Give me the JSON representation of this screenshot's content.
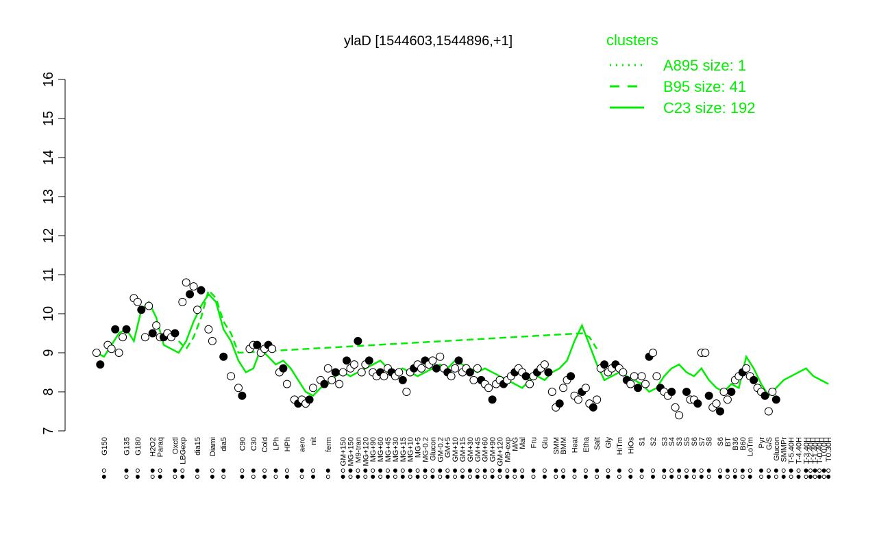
{
  "chart_data": {
    "type": "line",
    "title": "ylaD [1544603,1544896,+1]",
    "xlabel": "",
    "ylabel": "",
    "ylim": [
      7,
      16
    ],
    "yticks": [
      7,
      8,
      9,
      10,
      11,
      12,
      13,
      14,
      15,
      16
    ],
    "xlim": [
      0,
      100
    ],
    "x_tick_labels": [
      {
        "x": 2,
        "label": "G150"
      },
      {
        "x": 5,
        "label": "G135"
      },
      {
        "x": 6.5,
        "label": "G180"
      },
      {
        "x": 8.5,
        "label": "H2O2"
      },
      {
        "x": 9.5,
        "label": "Paraq"
      },
      {
        "x": 11.5,
        "label": "Oxctl"
      },
      {
        "x": 12.5,
        "label": "LBGexp"
      },
      {
        "x": 14.5,
        "label": "dia15"
      },
      {
        "x": 16.5,
        "label": "Diami"
      },
      {
        "x": 18,
        "label": "dia5"
      },
      {
        "x": 20.5,
        "label": "C90"
      },
      {
        "x": 22,
        "label": "C30"
      },
      {
        "x": 23.5,
        "label": "Cold"
      },
      {
        "x": 25,
        "label": "LPh"
      },
      {
        "x": 26.5,
        "label": "HPh"
      },
      {
        "x": 28.5,
        "label": "aero"
      },
      {
        "x": 30,
        "label": "nit"
      },
      {
        "x": 32,
        "label": "ferm"
      },
      {
        "x": 34,
        "label": "GM+150"
      },
      {
        "x": 35,
        "label": "MG+150"
      },
      {
        "x": 36,
        "label": "M9-tran"
      },
      {
        "x": 37,
        "label": "MG+120"
      },
      {
        "x": 38,
        "label": "MG+90"
      },
      {
        "x": 39,
        "label": "MG+60"
      },
      {
        "x": 40,
        "label": "MG+45"
      },
      {
        "x": 41,
        "label": "MG+30"
      },
      {
        "x": 42,
        "label": "MG+15"
      },
      {
        "x": 43,
        "label": "MG+10"
      },
      {
        "x": 44,
        "label": "MG+5"
      },
      {
        "x": 45,
        "label": "MG-0.2"
      },
      {
        "x": 46,
        "label": "Glucon"
      },
      {
        "x": 47,
        "label": "GM-0.2"
      },
      {
        "x": 48,
        "label": "GM+5"
      },
      {
        "x": 49,
        "label": "GM+10"
      },
      {
        "x": 50,
        "label": "GM+15"
      },
      {
        "x": 51,
        "label": "GM+30"
      },
      {
        "x": 52,
        "label": "GM+45"
      },
      {
        "x": 53,
        "label": "GM+60"
      },
      {
        "x": 54,
        "label": "GM+90"
      },
      {
        "x": 55,
        "label": "GM+120"
      },
      {
        "x": 56,
        "label": "M9-exp"
      },
      {
        "x": 57,
        "label": "M/G"
      },
      {
        "x": 58,
        "label": "Mal"
      },
      {
        "x": 59.5,
        "label": "Fru"
      },
      {
        "x": 61,
        "label": "Glu"
      },
      {
        "x": 62.5,
        "label": "SMM"
      },
      {
        "x": 63.5,
        "label": "BMM"
      },
      {
        "x": 65,
        "label": "Heat"
      },
      {
        "x": 66.5,
        "label": "Etha"
      },
      {
        "x": 68,
        "label": "Salt"
      },
      {
        "x": 69.5,
        "label": "Gly"
      },
      {
        "x": 71,
        "label": "HiTm"
      },
      {
        "x": 72.5,
        "label": "HiOs"
      },
      {
        "x": 74,
        "label": "S1"
      },
      {
        "x": 75.5,
        "label": "S2"
      },
      {
        "x": 77,
        "label": "S3"
      },
      {
        "x": 78,
        "label": "S4"
      },
      {
        "x": 79,
        "label": "S3"
      },
      {
        "x": 80,
        "label": "S5"
      },
      {
        "x": 81,
        "label": "S6"
      },
      {
        "x": 82,
        "label": "S7"
      },
      {
        "x": 83,
        "label": "S8"
      },
      {
        "x": 84.5,
        "label": "S6"
      },
      {
        "x": 85.5,
        "label": "BT"
      },
      {
        "x": 86.5,
        "label": "B36"
      },
      {
        "x": 87.5,
        "label": "B60"
      },
      {
        "x": 88.5,
        "label": "LoTm"
      },
      {
        "x": 90,
        "label": "Pyr"
      },
      {
        "x": 91,
        "label": "G/S"
      },
      {
        "x": 92,
        "label": "Glucon"
      },
      {
        "x": 93,
        "label": "SMMPr"
      },
      {
        "x": 94,
        "label": "T-5.40H"
      },
      {
        "x": 95,
        "label": "T-4.40H"
      },
      {
        "x": 96,
        "label": "T-3.40H"
      },
      {
        "x": 96.6,
        "label": "T-2.40H"
      },
      {
        "x": 97.2,
        "label": "T-1.40H"
      },
      {
        "x": 97.8,
        "label": "T-0.40H"
      },
      {
        "x": 98.4,
        "label": "T0.0H"
      },
      {
        "x": 99,
        "label": "T0.30H"
      }
    ],
    "series": [
      {
        "name": "A895 size: 1",
        "style": "dotted",
        "color": "#00ee00",
        "points": []
      },
      {
        "name": "B95 size: 41",
        "style": "dashed",
        "color": "#00ee00",
        "points": [
          [
            12,
            9.3
          ],
          [
            13,
            9.1
          ],
          [
            14,
            9.4
          ],
          [
            15,
            9.9
          ],
          [
            16,
            10.6
          ],
          [
            17,
            10.4
          ],
          [
            18,
            9.8
          ],
          [
            19,
            9.5
          ],
          [
            20,
            9.0
          ],
          [
            66,
            9.5
          ],
          [
            67,
            9.4
          ],
          [
            68,
            9.1
          ]
        ]
      },
      {
        "name": "C23 size: 192",
        "style": "solid",
        "color": "#00ee00",
        "points": [
          [
            1,
            9.0
          ],
          [
            2,
            8.9
          ],
          [
            3,
            9.2
          ],
          [
            4,
            9.5
          ],
          [
            5,
            9.6
          ],
          [
            6,
            9.3
          ],
          [
            7,
            10.1
          ],
          [
            8,
            10.3
          ],
          [
            9,
            9.9
          ],
          [
            10,
            9.2
          ],
          [
            11,
            9.1
          ],
          [
            12,
            9.0
          ],
          [
            13,
            9.3
          ],
          [
            14,
            9.8
          ],
          [
            15,
            10.2
          ],
          [
            16,
            10.5
          ],
          [
            17,
            10.3
          ],
          [
            18,
            9.6
          ],
          [
            19,
            9.3
          ],
          [
            20,
            8.8
          ],
          [
            21,
            8.5
          ],
          [
            22,
            8.6
          ],
          [
            23,
            9.1
          ],
          [
            24,
            8.9
          ],
          [
            25,
            8.7
          ],
          [
            26,
            8.8
          ],
          [
            27,
            8.6
          ],
          [
            28,
            8.3
          ],
          [
            29,
            8.0
          ],
          [
            30,
            7.9
          ],
          [
            31,
            8.1
          ],
          [
            32,
            8.2
          ],
          [
            33,
            8.4
          ],
          [
            34,
            8.5
          ],
          [
            35,
            8.4
          ],
          [
            36,
            8.5
          ],
          [
            37,
            8.6
          ],
          [
            38,
            8.7
          ],
          [
            39,
            8.8
          ],
          [
            40,
            8.6
          ],
          [
            41,
            8.5
          ],
          [
            42,
            8.6
          ],
          [
            43,
            8.5
          ],
          [
            44,
            8.4
          ],
          [
            45,
            8.5
          ],
          [
            46,
            8.6
          ],
          [
            47,
            8.7
          ],
          [
            48,
            8.6
          ],
          [
            49,
            8.8
          ],
          [
            50,
            8.7
          ],
          [
            51,
            8.6
          ],
          [
            52,
            8.5
          ],
          [
            53,
            8.6
          ],
          [
            54,
            8.5
          ],
          [
            55,
            8.4
          ],
          [
            56,
            8.3
          ],
          [
            57,
            8.2
          ],
          [
            58,
            8.1
          ],
          [
            59,
            8.3
          ],
          [
            60,
            8.4
          ],
          [
            61,
            8.3
          ],
          [
            62,
            8.5
          ],
          [
            63,
            8.6
          ],
          [
            64,
            8.8
          ],
          [
            65,
            9.3
          ],
          [
            66,
            9.7
          ],
          [
            67,
            9.2
          ],
          [
            68,
            8.7
          ],
          [
            69,
            8.3
          ],
          [
            70,
            8.4
          ],
          [
            71,
            8.5
          ],
          [
            72,
            8.4
          ],
          [
            73,
            8.3
          ],
          [
            74,
            8.2
          ],
          [
            75,
            8.0
          ],
          [
            76,
            8.1
          ],
          [
            77,
            8.4
          ],
          [
            78,
            8.6
          ],
          [
            79,
            8.7
          ],
          [
            80,
            8.5
          ],
          [
            81,
            8.4
          ],
          [
            82,
            8.6
          ],
          [
            83,
            8.3
          ],
          [
            84,
            8.1
          ],
          [
            85,
            8.0
          ],
          [
            86,
            8.2
          ],
          [
            87,
            8.1
          ],
          [
            88,
            8.9
          ],
          [
            89,
            8.6
          ],
          [
            90,
            8.2
          ],
          [
            91,
            7.9
          ],
          [
            92,
            8.1
          ],
          [
            93,
            8.3
          ],
          [
            94,
            8.4
          ],
          [
            95,
            8.5
          ],
          [
            96,
            8.6
          ],
          [
            97,
            8.4
          ],
          [
            98,
            8.3
          ],
          [
            99,
            8.2
          ]
        ]
      }
    ],
    "points": [
      [
        1,
        9.0
      ],
      [
        1.5,
        8.7
      ],
      [
        2.5,
        9.2
      ],
      [
        3,
        9.1
      ],
      [
        3.5,
        9.6
      ],
      [
        4,
        9.0
      ],
      [
        4.5,
        9.4
      ],
      [
        5,
        9.6
      ],
      [
        6,
        10.4
      ],
      [
        6.5,
        10.3
      ],
      [
        7,
        10.1
      ],
      [
        7.5,
        9.4
      ],
      [
        8,
        10.2
      ],
      [
        8.5,
        9.5
      ],
      [
        9,
        9.7
      ],
      [
        9.5,
        9.4
      ],
      [
        10,
        9.4
      ],
      [
        10.5,
        9.5
      ],
      [
        11,
        9.4
      ],
      [
        11.5,
        9.5
      ],
      [
        12.5,
        10.3
      ],
      [
        13,
        10.8
      ],
      [
        13.5,
        10.5
      ],
      [
        14,
        10.7
      ],
      [
        14.5,
        10.1
      ],
      [
        15,
        10.6
      ],
      [
        16,
        9.6
      ],
      [
        16.5,
        9.3
      ],
      [
        18,
        8.9
      ],
      [
        19,
        8.4
      ],
      [
        20,
        8.1
      ],
      [
        20.5,
        7.9
      ],
      [
        21.5,
        9.1
      ],
      [
        22,
        9.2
      ],
      [
        22.5,
        9.2
      ],
      [
        23,
        9.0
      ],
      [
        23.5,
        9.1
      ],
      [
        24,
        9.2
      ],
      [
        24.5,
        9.1
      ],
      [
        25.5,
        8.5
      ],
      [
        26,
        8.6
      ],
      [
        26.5,
        8.2
      ],
      [
        27.5,
        7.8
      ],
      [
        28,
        7.7
      ],
      [
        28.5,
        7.8
      ],
      [
        29,
        7.7
      ],
      [
        29.5,
        7.8
      ],
      [
        30,
        8.1
      ],
      [
        31,
        8.3
      ],
      [
        31.5,
        8.2
      ],
      [
        32,
        8.6
      ],
      [
        32.5,
        8.3
      ],
      [
        33,
        8.5
      ],
      [
        33.5,
        8.2
      ],
      [
        34,
        8.5
      ],
      [
        34.5,
        8.8
      ],
      [
        35,
        8.6
      ],
      [
        35.5,
        8.7
      ],
      [
        36,
        9.3
      ],
      [
        36.5,
        8.5
      ],
      [
        37,
        8.7
      ],
      [
        37.5,
        8.8
      ],
      [
        38,
        8.5
      ],
      [
        38.5,
        8.4
      ],
      [
        39,
        8.5
      ],
      [
        39.5,
        8.4
      ],
      [
        40,
        8.6
      ],
      [
        40.5,
        8.5
      ],
      [
        41,
        8.4
      ],
      [
        41.5,
        8.5
      ],
      [
        42,
        8.3
      ],
      [
        42.5,
        8.0
      ],
      [
        43,
        8.5
      ],
      [
        43.5,
        8.6
      ],
      [
        44,
        8.7
      ],
      [
        44.5,
        8.6
      ],
      [
        45,
        8.8
      ],
      [
        45.5,
        8.7
      ],
      [
        46,
        8.8
      ],
      [
        46.5,
        8.6
      ],
      [
        47,
        8.9
      ],
      [
        47.5,
        8.6
      ],
      [
        48,
        8.5
      ],
      [
        48.5,
        8.4
      ],
      [
        49,
        8.6
      ],
      [
        49.5,
        8.8
      ],
      [
        50,
        8.5
      ],
      [
        50.5,
        8.6
      ],
      [
        51,
        8.5
      ],
      [
        51.5,
        8.3
      ],
      [
        52,
        8.6
      ],
      [
        52.5,
        8.3
      ],
      [
        53,
        8.2
      ],
      [
        53.5,
        8.1
      ],
      [
        54,
        7.8
      ],
      [
        54.5,
        8.2
      ],
      [
        55,
        8.3
      ],
      [
        55.5,
        8.2
      ],
      [
        56,
        8.3
      ],
      [
        56.5,
        8.4
      ],
      [
        57,
        8.5
      ],
      [
        57.5,
        8.6
      ],
      [
        58,
        8.5
      ],
      [
        58.5,
        8.4
      ],
      [
        59,
        8.2
      ],
      [
        59.5,
        8.4
      ],
      [
        60,
        8.5
      ],
      [
        60.5,
        8.6
      ],
      [
        61,
        8.7
      ],
      [
        61.5,
        8.5
      ],
      [
        62,
        8.0
      ],
      [
        62.5,
        7.6
      ],
      [
        63,
        7.7
      ],
      [
        63.5,
        8.1
      ],
      [
        64,
        8.3
      ],
      [
        64.5,
        8.4
      ],
      [
        65,
        7.9
      ],
      [
        65.5,
        7.8
      ],
      [
        66,
        8.0
      ],
      [
        66.5,
        8.1
      ],
      [
        67,
        7.7
      ],
      [
        67.5,
        7.6
      ],
      [
        68,
        7.8
      ],
      [
        68.5,
        8.6
      ],
      [
        69,
        8.7
      ],
      [
        69.5,
        8.5
      ],
      [
        70,
        8.6
      ],
      [
        70.5,
        8.7
      ],
      [
        71,
        8.6
      ],
      [
        71.5,
        8.5
      ],
      [
        72,
        8.3
      ],
      [
        72.5,
        8.2
      ],
      [
        73,
        8.4
      ],
      [
        73.5,
        8.1
      ],
      [
        74,
        8.4
      ],
      [
        74.5,
        8.2
      ],
      [
        75,
        8.9
      ],
      [
        75.5,
        9.0
      ],
      [
        76,
        8.4
      ],
      [
        76.5,
        8.1
      ],
      [
        77,
        8.0
      ],
      [
        77.5,
        7.9
      ],
      [
        78,
        8.0
      ],
      [
        78.5,
        7.6
      ],
      [
        79,
        7.4
      ],
      [
        80,
        8.0
      ],
      [
        80.5,
        7.8
      ],
      [
        81,
        7.8
      ],
      [
        81.5,
        7.7
      ],
      [
        82,
        9.0
      ],
      [
        82.5,
        9.0
      ],
      [
        83,
        7.9
      ],
      [
        83.5,
        7.6
      ],
      [
        84,
        7.7
      ],
      [
        84.5,
        7.5
      ],
      [
        85,
        8.0
      ],
      [
        85.5,
        7.8
      ],
      [
        86,
        8.0
      ],
      [
        86.5,
        8.3
      ],
      [
        87,
        8.4
      ],
      [
        87.5,
        8.5
      ],
      [
        88,
        8.6
      ],
      [
        88.5,
        8.4
      ],
      [
        89,
        8.3
      ],
      [
        89.5,
        8.1
      ],
      [
        90,
        8.0
      ],
      [
        90.5,
        7.9
      ],
      [
        91,
        7.5
      ],
      [
        91.5,
        8.0
      ],
      [
        92,
        7.8
      ]
    ],
    "legend": {
      "title": "clusters",
      "position": "top-right",
      "entries": [
        "A895 size: 1",
        "B95 size: 41",
        "C23 size: 192"
      ]
    },
    "grid": false
  }
}
